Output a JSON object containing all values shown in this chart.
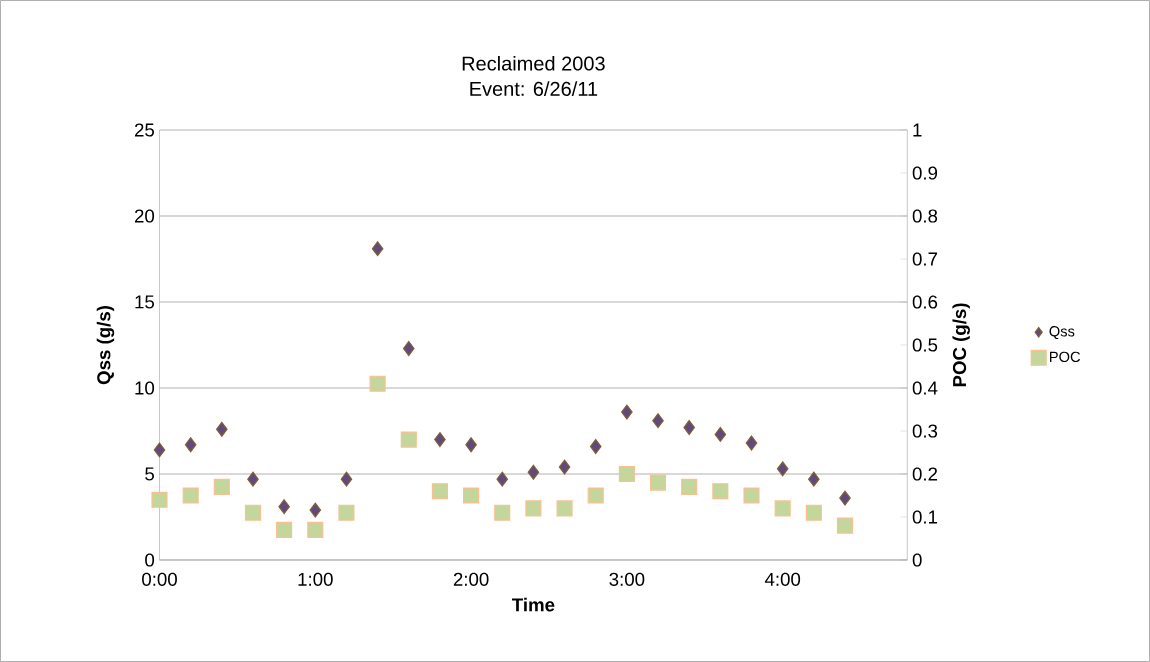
{
  "chart_data": {
    "type": "scatter",
    "title": "Reclaimed 2003",
    "subtitle": "Event: 6/26/11",
    "xlabel": "Time",
    "ylabel": "Qss (g/s)",
    "y2label": "POC (g/s)",
    "x": [
      0,
      0.2,
      0.4,
      0.6,
      0.8,
      1.0,
      1.2,
      1.4,
      1.6,
      1.8,
      2.0,
      2.2,
      2.4,
      2.6,
      2.8,
      3.0,
      3.2,
      3.4,
      3.6,
      3.8,
      4.0,
      4.2,
      4.4
    ],
    "series": [
      {
        "name": "Qss",
        "color": "#604a7b",
        "marker": "diamond",
        "values": [
          6.4,
          6.7,
          7.6,
          4.7,
          3.1,
          2.9,
          4.7,
          18.1,
          12.3,
          7.0,
          6.7,
          4.7,
          5.1,
          5.4,
          6.6,
          8.6,
          8.1,
          7.7,
          7.3,
          6.8,
          5.3,
          4.7,
          3.6
        ]
      },
      {
        "name": "POC",
        "color": "#c3d69b",
        "marker": "square",
        "axis": "y2",
        "values": [
          0.14,
          0.15,
          0.17,
          0.11,
          0.07,
          0.07,
          0.11,
          0.41,
          0.28,
          0.16,
          0.15,
          0.11,
          0.12,
          0.12,
          0.15,
          0.2,
          0.18,
          0.17,
          0.16,
          0.15,
          0.12,
          0.11,
          0.08
        ]
      }
    ],
    "xlim": [
      0,
      4.8
    ],
    "xticks": [
      {
        "value": 0,
        "label": "0:00"
      },
      {
        "value": 1,
        "label": "1:00"
      },
      {
        "value": 2,
        "label": "2:00"
      },
      {
        "value": 3,
        "label": "3:00"
      },
      {
        "value": 4,
        "label": "4:00"
      }
    ],
    "ylim": [
      0,
      25
    ],
    "yticks": [
      0,
      5,
      10,
      15,
      20,
      25
    ],
    "y2lim": [
      0,
      1
    ],
    "y2ticks": [
      0,
      0.1,
      0.2,
      0.3,
      0.4,
      0.5,
      0.6,
      0.7,
      0.8,
      0.9,
      1
    ],
    "grid": "y",
    "legend": "right"
  }
}
